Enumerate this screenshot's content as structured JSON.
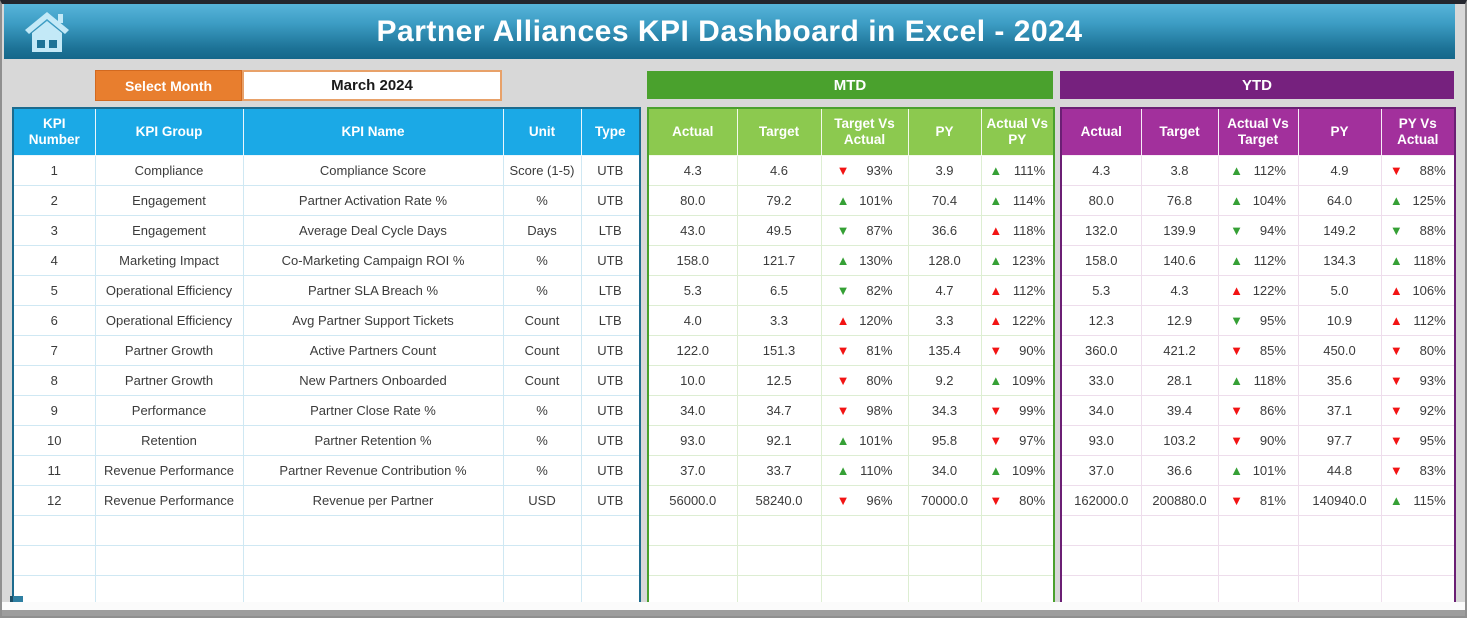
{
  "window": {
    "title": "Partner Alliances KPI Dashboard in Excel - 2024"
  },
  "controls": {
    "select_month_label": "Select Month",
    "selected_month": "March 2024"
  },
  "sections": {
    "mtd_label": "MTD",
    "ytd_label": "YTD"
  },
  "icons": {
    "home": "home-icon",
    "trend_up": "up-triangle",
    "trend_down": "down-triangle"
  },
  "colors": {
    "banner_blue_top": "#57b4da",
    "banner_blue_bottom": "#15678a",
    "info_header_blue": "#1ba9e6",
    "mtd_bar_green": "#4aa12d",
    "mtd_header_green": "#8cc94f",
    "ytd_bar_purple": "#76217e",
    "ytd_header_magenta": "#a2309c",
    "select_month_orange": "#e87e2e",
    "trend_green": "#35a035",
    "trend_red": "#f21313"
  },
  "table": {
    "info_headers": [
      "KPI Number",
      "KPI Group",
      "KPI Name",
      "Unit",
      "Type"
    ],
    "mtd_headers": [
      "Actual",
      "Target",
      "Target Vs Actual",
      "PY",
      "Actual Vs PY"
    ],
    "ytd_headers": [
      "Actual",
      "Target",
      "Actual Vs Target",
      "PY",
      "PY Vs Actual"
    ],
    "empty_row_count": 3,
    "rows": [
      {
        "num": "1",
        "group": "Compliance",
        "name": "Compliance Score",
        "unit": "Score (1-5)",
        "type": "UTB",
        "mtd": {
          "actual": "4.3",
          "target": "4.6",
          "tva": {
            "pct": "93%",
            "dir": "down",
            "color": "red"
          },
          "py": "3.9",
          "avp": {
            "pct": "111%",
            "dir": "up",
            "color": "green"
          }
        },
        "ytd": {
          "actual": "4.3",
          "target": "3.8",
          "avt": {
            "pct": "112%",
            "dir": "up",
            "color": "green"
          },
          "py": "4.9",
          "pva": {
            "pct": "88%",
            "dir": "down",
            "color": "red"
          }
        }
      },
      {
        "num": "2",
        "group": "Engagement",
        "name": "Partner Activation Rate %",
        "unit": "%",
        "type": "UTB",
        "mtd": {
          "actual": "80.0",
          "target": "79.2",
          "tva": {
            "pct": "101%",
            "dir": "up",
            "color": "green"
          },
          "py": "70.4",
          "avp": {
            "pct": "114%",
            "dir": "up",
            "color": "green"
          }
        },
        "ytd": {
          "actual": "80.0",
          "target": "76.8",
          "avt": {
            "pct": "104%",
            "dir": "up",
            "color": "green"
          },
          "py": "64.0",
          "pva": {
            "pct": "125%",
            "dir": "up",
            "color": "green"
          }
        }
      },
      {
        "num": "3",
        "group": "Engagement",
        "name": "Average Deal Cycle Days",
        "unit": "Days",
        "type": "LTB",
        "mtd": {
          "actual": "43.0",
          "target": "49.5",
          "tva": {
            "pct": "87%",
            "dir": "down",
            "color": "green"
          },
          "py": "36.6",
          "avp": {
            "pct": "118%",
            "dir": "up",
            "color": "red"
          }
        },
        "ytd": {
          "actual": "132.0",
          "target": "139.9",
          "avt": {
            "pct": "94%",
            "dir": "down",
            "color": "green"
          },
          "py": "149.2",
          "pva": {
            "pct": "88%",
            "dir": "down",
            "color": "green"
          }
        }
      },
      {
        "num": "4",
        "group": "Marketing Impact",
        "name": "Co-Marketing Campaign ROI %",
        "unit": "%",
        "type": "UTB",
        "mtd": {
          "actual": "158.0",
          "target": "121.7",
          "tva": {
            "pct": "130%",
            "dir": "up",
            "color": "green"
          },
          "py": "128.0",
          "avp": {
            "pct": "123%",
            "dir": "up",
            "color": "green"
          }
        },
        "ytd": {
          "actual": "158.0",
          "target": "140.6",
          "avt": {
            "pct": "112%",
            "dir": "up",
            "color": "green"
          },
          "py": "134.3",
          "pva": {
            "pct": "118%",
            "dir": "up",
            "color": "green"
          }
        }
      },
      {
        "num": "5",
        "group": "Operational Efficiency",
        "name": "Partner SLA Breach %",
        "unit": "%",
        "type": "LTB",
        "mtd": {
          "actual": "5.3",
          "target": "6.5",
          "tva": {
            "pct": "82%",
            "dir": "down",
            "color": "green"
          },
          "py": "4.7",
          "avp": {
            "pct": "112%",
            "dir": "up",
            "color": "red"
          }
        },
        "ytd": {
          "actual": "5.3",
          "target": "4.3",
          "avt": {
            "pct": "122%",
            "dir": "up",
            "color": "red"
          },
          "py": "5.0",
          "pva": {
            "pct": "106%",
            "dir": "up",
            "color": "red"
          }
        }
      },
      {
        "num": "6",
        "group": "Operational Efficiency",
        "name": "Avg Partner Support Tickets",
        "unit": "Count",
        "type": "LTB",
        "mtd": {
          "actual": "4.0",
          "target": "3.3",
          "tva": {
            "pct": "120%",
            "dir": "up",
            "color": "red"
          },
          "py": "3.3",
          "avp": {
            "pct": "122%",
            "dir": "up",
            "color": "red"
          }
        },
        "ytd": {
          "actual": "12.3",
          "target": "12.9",
          "avt": {
            "pct": "95%",
            "dir": "down",
            "color": "green"
          },
          "py": "10.9",
          "pva": {
            "pct": "112%",
            "dir": "up",
            "color": "red"
          }
        }
      },
      {
        "num": "7",
        "group": "Partner Growth",
        "name": "Active Partners Count",
        "unit": "Count",
        "type": "UTB",
        "mtd": {
          "actual": "122.0",
          "target": "151.3",
          "tva": {
            "pct": "81%",
            "dir": "down",
            "color": "red"
          },
          "py": "135.4",
          "avp": {
            "pct": "90%",
            "dir": "down",
            "color": "red"
          }
        },
        "ytd": {
          "actual": "360.0",
          "target": "421.2",
          "avt": {
            "pct": "85%",
            "dir": "down",
            "color": "red"
          },
          "py": "450.0",
          "pva": {
            "pct": "80%",
            "dir": "down",
            "color": "red"
          }
        }
      },
      {
        "num": "8",
        "group": "Partner Growth",
        "name": "New Partners Onboarded",
        "unit": "Count",
        "type": "UTB",
        "mtd": {
          "actual": "10.0",
          "target": "12.5",
          "tva": {
            "pct": "80%",
            "dir": "down",
            "color": "red"
          },
          "py": "9.2",
          "avp": {
            "pct": "109%",
            "dir": "up",
            "color": "green"
          }
        },
        "ytd": {
          "actual": "33.0",
          "target": "28.1",
          "avt": {
            "pct": "118%",
            "dir": "up",
            "color": "green"
          },
          "py": "35.6",
          "pva": {
            "pct": "93%",
            "dir": "down",
            "color": "red"
          }
        }
      },
      {
        "num": "9",
        "group": "Performance",
        "name": "Partner Close Rate %",
        "unit": "%",
        "type": "UTB",
        "mtd": {
          "actual": "34.0",
          "target": "34.7",
          "tva": {
            "pct": "98%",
            "dir": "down",
            "color": "red"
          },
          "py": "34.3",
          "avp": {
            "pct": "99%",
            "dir": "down",
            "color": "red"
          }
        },
        "ytd": {
          "actual": "34.0",
          "target": "39.4",
          "avt": {
            "pct": "86%",
            "dir": "down",
            "color": "red"
          },
          "py": "37.1",
          "pva": {
            "pct": "92%",
            "dir": "down",
            "color": "red"
          }
        }
      },
      {
        "num": "10",
        "group": "Retention",
        "name": "Partner Retention %",
        "unit": "%",
        "type": "UTB",
        "mtd": {
          "actual": "93.0",
          "target": "92.1",
          "tva": {
            "pct": "101%",
            "dir": "up",
            "color": "green"
          },
          "py": "95.8",
          "avp": {
            "pct": "97%",
            "dir": "down",
            "color": "red"
          }
        },
        "ytd": {
          "actual": "93.0",
          "target": "103.2",
          "avt": {
            "pct": "90%",
            "dir": "down",
            "color": "red"
          },
          "py": "97.7",
          "pva": {
            "pct": "95%",
            "dir": "down",
            "color": "red"
          }
        }
      },
      {
        "num": "11",
        "group": "Revenue Performance",
        "name": "Partner Revenue Contribution %",
        "unit": "%",
        "type": "UTB",
        "mtd": {
          "actual": "37.0",
          "target": "33.7",
          "tva": {
            "pct": "110%",
            "dir": "up",
            "color": "green"
          },
          "py": "34.0",
          "avp": {
            "pct": "109%",
            "dir": "up",
            "color": "green"
          }
        },
        "ytd": {
          "actual": "37.0",
          "target": "36.6",
          "avt": {
            "pct": "101%",
            "dir": "up",
            "color": "green"
          },
          "py": "44.8",
          "pva": {
            "pct": "83%",
            "dir": "down",
            "color": "red"
          }
        }
      },
      {
        "num": "12",
        "group": "Revenue Performance",
        "name": "Revenue per Partner",
        "unit": "USD",
        "type": "UTB",
        "mtd": {
          "actual": "56000.0",
          "target": "58240.0",
          "tva": {
            "pct": "96%",
            "dir": "down",
            "color": "red"
          },
          "py": "70000.0",
          "avp": {
            "pct": "80%",
            "dir": "down",
            "color": "red"
          }
        },
        "ytd": {
          "actual": "162000.0",
          "target": "200880.0",
          "avt": {
            "pct": "81%",
            "dir": "down",
            "color": "red"
          },
          "py": "140940.0",
          "pva": {
            "pct": "115%",
            "dir": "up",
            "color": "green"
          }
        }
      }
    ]
  }
}
